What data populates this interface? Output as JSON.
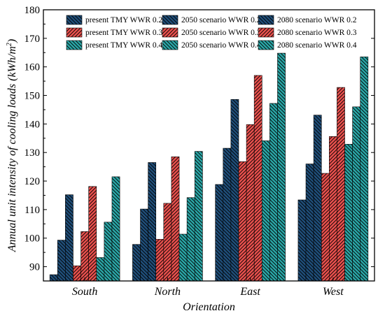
{
  "chart_data": {
    "type": "bar",
    "title": "",
    "xlabel": "Orientation",
    "ylabel": "Annual unit intensity of cooling loads (kWh/m²)",
    "ylabel_main": "Annual unit intensity of cooling loads ",
    "ylabel_unit": "(kWh/m",
    "ylabel_sup": "2",
    "ylabel_close": ")",
    "categories": [
      "South",
      "North",
      "East",
      "West"
    ],
    "ylim": [
      85,
      180
    ],
    "yticks": [
      90,
      100,
      110,
      120,
      130,
      140,
      150,
      160,
      170,
      180
    ],
    "grid": false,
    "legend_position": "top-right",
    "colors": {
      "blue": "#1f4e79",
      "red": "#e8504d",
      "teal": "#2aa6a6"
    },
    "series": [
      {
        "name": "present TMY WWR 0.2",
        "color": "blue",
        "hatch": "back",
        "values": [
          87.2,
          97.8,
          118.8,
          113.4
        ]
      },
      {
        "name": "2050 scenario WWR 0.2",
        "color": "blue",
        "hatch": "back",
        "values": [
          99.3,
          110.2,
          131.5,
          126.0
        ]
      },
      {
        "name": "2080 scenario WWR 0.2",
        "color": "blue",
        "hatch": "back",
        "values": [
          115.2,
          126.5,
          148.6,
          143.1
        ]
      },
      {
        "name": "present TMY WWR 0.3",
        "color": "red",
        "hatch": "fwd",
        "values": [
          90.3,
          99.6,
          126.8,
          122.7
        ]
      },
      {
        "name": "2050 scenario WWR 0.3",
        "color": "red",
        "hatch": "fwd",
        "values": [
          102.3,
          112.2,
          139.8,
          135.6
        ]
      },
      {
        "name": "2080 scenario WWR 0.3",
        "color": "red",
        "hatch": "fwd",
        "values": [
          118.1,
          128.5,
          157.0,
          152.8
        ]
      },
      {
        "name": "present TMY WWR 0.4",
        "color": "teal",
        "hatch": "back",
        "values": [
          93.2,
          101.4,
          134.1,
          132.9
        ]
      },
      {
        "name": "2050 scenario WWR 0.4",
        "color": "teal",
        "hatch": "back",
        "values": [
          105.6,
          114.2,
          147.2,
          146.0
        ]
      },
      {
        "name": "2080 scenario WWR 0.4",
        "color": "teal",
        "hatch": "back",
        "values": [
          121.5,
          130.4,
          164.8,
          163.5
        ]
      }
    ],
    "legend_order": [
      [
        "present TMY WWR 0.2",
        "2050 scenario WWR 0.2",
        "2080 scenario WWR 0.2"
      ],
      [
        "present TMY WWR 0.3",
        "2050 scenario WWR 0.3",
        "2080 scenario WWR 0.3"
      ],
      [
        "present TMY WWR 0.4",
        "2050 scenario WWR 0.4",
        "2080 scenario WWR 0.4"
      ]
    ]
  }
}
